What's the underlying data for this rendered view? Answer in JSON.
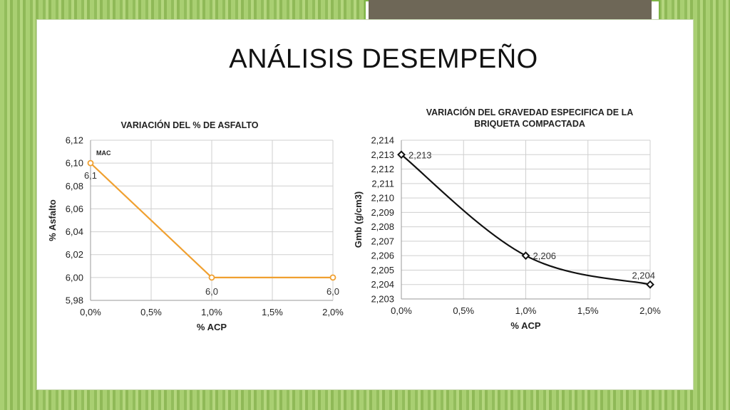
{
  "slide": {
    "title": "ANÁLISIS DESEMPEÑO"
  },
  "chart_data": [
    {
      "type": "line",
      "title": "VARIACIÓN DEL % DE ASFALTO",
      "xlabel": "% ACP",
      "ylabel": "% Asfalto",
      "x": [
        0.0,
        1.0,
        2.0
      ],
      "x_tick_labels": [
        "0,0%",
        "0,5%",
        "1,0%",
        "1,5%",
        "2,0%"
      ],
      "xlim": [
        0.0,
        2.0
      ],
      "ylim": [
        5.98,
        6.12
      ],
      "y_tick_labels": [
        "6,12",
        "6,10",
        "6,08",
        "6,06",
        "6,04",
        "6,02",
        "6,00",
        "5,98"
      ],
      "series": [
        {
          "values": [
            6.1,
            6.0,
            6.0
          ],
          "data_labels": [
            "6,1",
            "6,0",
            "6,0"
          ],
          "color": "#f0a030"
        }
      ],
      "annotations": [
        "MAC"
      ],
      "grid": true,
      "line_style": "straight",
      "marker": "circle"
    },
    {
      "type": "line",
      "title": "VARIACIÓN DEL GRAVEDAD ESPECIFICA DE LA BRIQUETA COMPACTADA",
      "title_lines": [
        "VARIACIÓN DEL GRAVEDAD ESPECIFICA DE LA",
        "BRIQUETA COMPACTADA"
      ],
      "xlabel": "% ACP",
      "ylabel": "Gmb (g/cm3)",
      "x": [
        0.0,
        1.0,
        2.0
      ],
      "x_tick_labels": [
        "0,0%",
        "0,5%",
        "1,0%",
        "1,5%",
        "2,0%"
      ],
      "xlim": [
        0.0,
        2.0
      ],
      "ylim": [
        2.203,
        2.214
      ],
      "y_tick_labels": [
        "2,214",
        "2,213",
        "2,212",
        "2,211",
        "2,210",
        "2,209",
        "2,208",
        "2,207",
        "2,206",
        "2,205",
        "2,204",
        "2,203"
      ],
      "series": [
        {
          "values": [
            2.213,
            2.206,
            2.204
          ],
          "data_labels": [
            "2,213",
            "2,206",
            "2,204"
          ],
          "color": "#111111"
        }
      ],
      "grid": true,
      "line_style": "smooth",
      "marker": "diamond"
    }
  ]
}
